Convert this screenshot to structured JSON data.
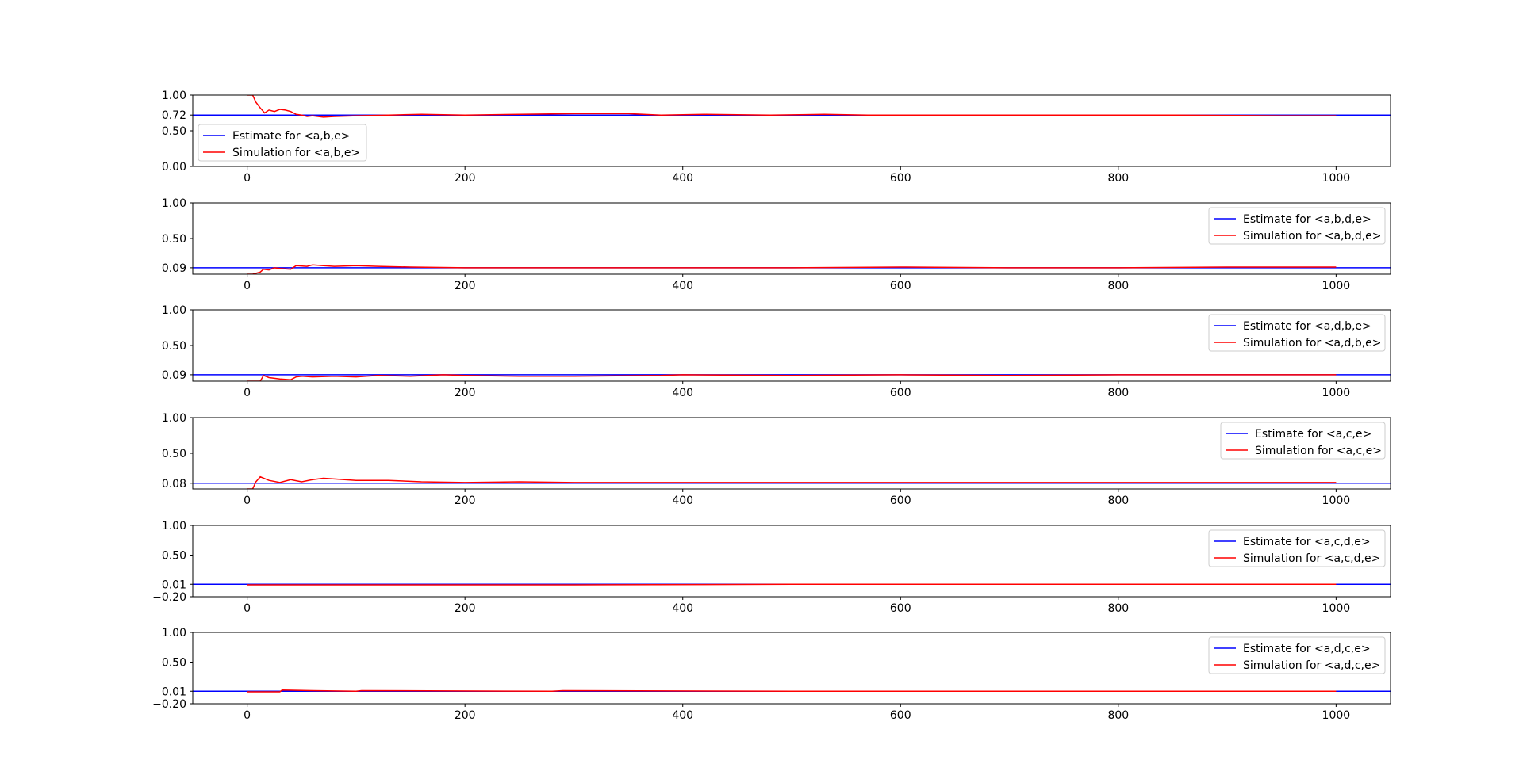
{
  "colors": {
    "estimate": "#0000ff",
    "simulation": "#ff0000"
  },
  "x_ticks": [
    0,
    200,
    400,
    600,
    800,
    1000
  ],
  "chart_data": [
    {
      "type": "line",
      "xlim": [
        -50,
        1050
      ],
      "ylim": [
        0.0,
        1.0
      ],
      "y_ticks": [
        "1.00",
        "0.72",
        "0.50",
        "0.00"
      ],
      "y_tick_values": [
        1.0,
        0.72,
        0.5,
        0.0
      ],
      "legend_position": "bottom-left",
      "estimate": {
        "name": "Estimate for <a,b,e>",
        "value": 0.72
      },
      "simulation": {
        "name": "Simulation for <a,b,e>",
        "x": [
          0,
          5,
          8,
          12,
          16,
          20,
          25,
          30,
          35,
          40,
          45,
          50,
          55,
          60,
          70,
          80,
          100,
          130,
          160,
          200,
          250,
          300,
          350,
          380,
          420,
          480,
          530,
          570,
          650,
          750,
          850,
          950,
          1000
        ],
        "y": [
          1.0,
          1.0,
          0.9,
          0.82,
          0.75,
          0.79,
          0.77,
          0.8,
          0.79,
          0.77,
          0.73,
          0.72,
          0.7,
          0.71,
          0.69,
          0.7,
          0.71,
          0.72,
          0.73,
          0.72,
          0.73,
          0.74,
          0.74,
          0.72,
          0.73,
          0.72,
          0.73,
          0.72,
          0.72,
          0.72,
          0.72,
          0.71,
          0.71
        ]
      }
    },
    {
      "type": "line",
      "xlim": [
        -50,
        1050
      ],
      "ylim": [
        0.0,
        1.0
      ],
      "y_ticks": [
        "1.00",
        "0.50",
        "0.09"
      ],
      "y_tick_values": [
        1.0,
        0.5,
        0.09
      ],
      "legend_position": "top-right",
      "estimate": {
        "name": "Estimate for <a,b,d,e>",
        "value": 0.09
      },
      "simulation": {
        "name": "Simulation for <a,b,d,e>",
        "x": [
          0,
          5,
          12,
          15,
          20,
          25,
          30,
          40,
          45,
          55,
          60,
          70,
          80,
          100,
          120,
          150,
          200,
          300,
          400,
          500,
          600,
          700,
          800,
          900,
          1000
        ],
        "y": [
          0.0,
          0.0,
          0.03,
          0.07,
          0.06,
          0.09,
          0.08,
          0.07,
          0.12,
          0.11,
          0.13,
          0.12,
          0.11,
          0.12,
          0.11,
          0.1,
          0.09,
          0.09,
          0.09,
          0.09,
          0.1,
          0.09,
          0.09,
          0.1,
          0.1
        ]
      }
    },
    {
      "type": "line",
      "xlim": [
        -50,
        1050
      ],
      "ylim": [
        0.0,
        1.0
      ],
      "y_ticks": [
        "1.00",
        "0.50",
        "0.09"
      ],
      "y_tick_values": [
        1.0,
        0.5,
        0.09
      ],
      "legend_position": "top-right",
      "estimate": {
        "name": "Estimate for <a,d,b,e>",
        "value": 0.09
      },
      "simulation": {
        "name": "Simulation for <a,d,b,e>",
        "x": [
          0,
          12,
          15,
          20,
          30,
          40,
          45,
          50,
          60,
          80,
          100,
          120,
          150,
          180,
          200,
          250,
          300,
          380,
          400,
          500,
          600,
          700,
          800,
          900,
          1000
        ],
        "y": [
          0.0,
          0.0,
          0.08,
          0.05,
          0.03,
          0.02,
          0.06,
          0.07,
          0.06,
          0.07,
          0.06,
          0.08,
          0.07,
          0.09,
          0.08,
          0.07,
          0.07,
          0.08,
          0.09,
          0.08,
          0.09,
          0.08,
          0.09,
          0.09,
          0.09
        ]
      }
    },
    {
      "type": "line",
      "xlim": [
        -50,
        1050
      ],
      "ylim": [
        0.0,
        1.0
      ],
      "y_ticks": [
        "1.00",
        "0.50",
        "0.08"
      ],
      "y_tick_values": [
        1.0,
        0.5,
        0.08
      ],
      "legend_position": "top-right",
      "estimate": {
        "name": "Estimate for <a,c,e>",
        "value": 0.08
      },
      "simulation": {
        "name": "Simulation for <a,c,e>",
        "x": [
          0,
          5,
          8,
          12,
          20,
          30,
          40,
          50,
          60,
          70,
          80,
          100,
          130,
          160,
          200,
          250,
          300,
          400,
          500,
          600,
          700,
          800,
          900,
          1000
        ],
        "y": [
          0.0,
          0.0,
          0.1,
          0.17,
          0.12,
          0.09,
          0.13,
          0.1,
          0.13,
          0.15,
          0.14,
          0.12,
          0.12,
          0.1,
          0.09,
          0.1,
          0.09,
          0.09,
          0.09,
          0.09,
          0.09,
          0.09,
          0.09,
          0.09
        ]
      }
    },
    {
      "type": "line",
      "xlim": [
        -50,
        1050
      ],
      "ylim": [
        -0.2,
        1.0
      ],
      "y_ticks": [
        "1.00",
        "0.50",
        "0.01",
        "−0.20"
      ],
      "y_tick_values": [
        1.0,
        0.5,
        0.01,
        -0.2
      ],
      "legend_position": "top-right",
      "estimate": {
        "name": "Estimate for <a,c,d,e>",
        "value": 0.01
      },
      "simulation": {
        "name": "Simulation for <a,c,d,e>",
        "x": [
          0,
          100,
          300,
          500,
          700,
          1000
        ],
        "y": [
          0.0,
          0.0,
          0.0,
          0.01,
          0.01,
          0.01
        ]
      }
    },
    {
      "type": "line",
      "xlim": [
        -50,
        1050
      ],
      "ylim": [
        -0.2,
        1.0
      ],
      "y_ticks": [
        "1.00",
        "0.50",
        "0.01",
        "−0.20"
      ],
      "y_tick_values": [
        1.0,
        0.5,
        0.01,
        -0.2
      ],
      "legend_position": "top-right",
      "estimate": {
        "name": "Estimate for <a,d,c,e>",
        "value": 0.01
      },
      "simulation": {
        "name": "Simulation for <a,d,c,e>",
        "x": [
          0,
          30,
          32,
          60,
          100,
          105,
          280,
          290,
          500,
          700,
          1000
        ],
        "y": [
          0.0,
          0.0,
          0.03,
          0.02,
          0.01,
          0.02,
          0.01,
          0.02,
          0.01,
          0.01,
          0.01
        ]
      }
    }
  ]
}
